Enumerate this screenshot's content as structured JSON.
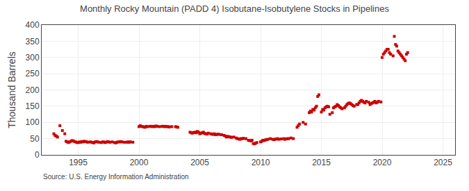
{
  "chart_data": {
    "type": "scatter",
    "title": "Monthly Rocky Mountain (PADD 4) Isobutane-Isobutylene Stocks in Pipelines",
    "y_label": "Thousand Barrels",
    "annotations": [
      "Source: U.S. Energy Information Administration"
    ],
    "color": "#cc0000",
    "marker": "square",
    "grid": true,
    "xlim": [
      1992,
      2026
    ],
    "ylim": [
      0,
      400
    ],
    "xticks": [
      1995,
      2000,
      2005,
      2010,
      2015,
      2020,
      2025
    ],
    "yticks": [
      0,
      50,
      100,
      150,
      200,
      250,
      300,
      350,
      400
    ],
    "x": [
      1993.0,
      1993.1,
      1993.2,
      1993.3,
      1993.5,
      1993.7,
      1993.9,
      1994.0,
      1994.1,
      1994.2,
      1994.3,
      1994.4,
      1994.5,
      1994.6,
      1994.7,
      1994.8,
      1994.9,
      1995.0,
      1995.1,
      1995.2,
      1995.3,
      1995.4,
      1995.5,
      1995.6,
      1995.7,
      1995.8,
      1996.0,
      1996.1,
      1996.2,
      1996.3,
      1996.4,
      1996.5,
      1996.6,
      1996.7,
      1996.9,
      1997.0,
      1997.1,
      1997.2,
      1997.3,
      1997.4,
      1997.5,
      1997.6,
      1997.8,
      1998.0,
      1998.1,
      1998.2,
      1998.3,
      1998.4,
      1998.5,
      1998.6,
      1998.8,
      1999.0,
      1999.1,
      1999.2,
      1999.3,
      1999.5,
      2000.0,
      2000.1,
      2000.2,
      2000.3,
      2000.4,
      2000.5,
      2000.6,
      2000.7,
      2000.9,
      2001.0,
      2001.1,
      2001.2,
      2001.3,
      2001.4,
      2001.5,
      2001.7,
      2001.9,
      2002.0,
      2002.1,
      2002.2,
      2002.3,
      2002.4,
      2002.5,
      2002.7,
      2003.0,
      2003.1,
      2003.2,
      2004.2,
      2004.3,
      2004.4,
      2004.5,
      2004.6,
      2004.7,
      2004.8,
      2004.9,
      2005.0,
      2005.1,
      2005.2,
      2005.3,
      2005.4,
      2005.5,
      2005.6,
      2005.7,
      2005.9,
      2006.0,
      2006.1,
      2006.2,
      2006.3,
      2006.4,
      2006.5,
      2006.6,
      2006.8,
      2007.0,
      2007.1,
      2007.2,
      2007.3,
      2007.4,
      2007.5,
      2007.6,
      2007.8,
      2008.0,
      2008.1,
      2008.2,
      2008.3,
      2008.4,
      2008.5,
      2008.6,
      2008.8,
      2009.0,
      2009.1,
      2009.2,
      2009.3,
      2009.4,
      2009.5,
      2009.6,
      2009.7,
      2010.0,
      2010.1,
      2010.2,
      2010.3,
      2010.4,
      2010.5,
      2010.6,
      2010.8,
      2011.0,
      2011.1,
      2011.2,
      2011.3,
      2011.4,
      2011.5,
      2011.7,
      2011.9,
      2012.0,
      2012.1,
      2012.2,
      2012.3,
      2012.5,
      2012.7,
      2013.0,
      2013.1,
      2013.2,
      2013.5,
      2013.7,
      2014.0,
      2014.1,
      2014.2,
      2014.3,
      2014.4,
      2014.5,
      2014.6,
      2014.7,
      2014.8,
      2015.0,
      2015.1,
      2015.2,
      2015.3,
      2015.4,
      2015.5,
      2015.6,
      2015.7,
      2015.9,
      2016.0,
      2016.1,
      2016.2,
      2016.3,
      2016.4,
      2016.5,
      2016.6,
      2016.7,
      2016.9,
      2017.0,
      2017.1,
      2017.2,
      2017.3,
      2017.4,
      2017.5,
      2017.6,
      2017.7,
      2017.9,
      2018.0,
      2018.1,
      2018.2,
      2018.3,
      2018.4,
      2018.5,
      2018.6,
      2018.7,
      2018.9,
      2019.0,
      2019.1,
      2019.2,
      2019.3,
      2019.4,
      2019.5,
      2019.6,
      2019.7,
      2019.9,
      2020.0,
      2020.1,
      2020.2,
      2020.3,
      2020.4,
      2020.5,
      2020.6,
      2020.7,
      2020.9,
      2021.0,
      2021.1,
      2021.2,
      2021.3,
      2021.4,
      2021.5,
      2021.6,
      2021.7,
      2021.8,
      2021.9,
      2022.0,
      2022.1
    ],
    "values": [
      65,
      60,
      58,
      55,
      90,
      75,
      65,
      42,
      40,
      38,
      40,
      42,
      44,
      43,
      41,
      40,
      38,
      38,
      40,
      39,
      41,
      40,
      42,
      41,
      40,
      39,
      40,
      39,
      38,
      37,
      40,
      41,
      40,
      39,
      38,
      40,
      40,
      38,
      39,
      41,
      40,
      39,
      40,
      38,
      37,
      39,
      40,
      40,
      41,
      40,
      39,
      39,
      40,
      39,
      40,
      39,
      87,
      90,
      88,
      87,
      86,
      85,
      88,
      87,
      88,
      88,
      87,
      88,
      87,
      89,
      88,
      87,
      88,
      88,
      87,
      88,
      87,
      87,
      86,
      87,
      87,
      86,
      85,
      70,
      68,
      67,
      69,
      70,
      68,
      72,
      70,
      65,
      67,
      68,
      70,
      66,
      65,
      64,
      67,
      65,
      64,
      63,
      65,
      62,
      63,
      64,
      63,
      62,
      60,
      58,
      55,
      57,
      56,
      55,
      54,
      55,
      52,
      50,
      49,
      48,
      50,
      50,
      51,
      50,
      45,
      44,
      43,
      45,
      35,
      34,
      36,
      38,
      40,
      42,
      45,
      44,
      46,
      47,
      48,
      50,
      48,
      47,
      48,
      49,
      50,
      48,
      49,
      50,
      48,
      49,
      50,
      50,
      52,
      50,
      85,
      90,
      95,
      100,
      95,
      130,
      135,
      132,
      140,
      138,
      145,
      150,
      180,
      185,
      132,
      140,
      138,
      145,
      148,
      150,
      148,
      125,
      130,
      145,
      148,
      150,
      155,
      152,
      148,
      145,
      142,
      145,
      150,
      155,
      158,
      160,
      158,
      155,
      152,
      150,
      155,
      155,
      160,
      165,
      168,
      165,
      162,
      160,
      165,
      162,
      155,
      158,
      160,
      162,
      165,
      160,
      162,
      165,
      163,
      300,
      310,
      315,
      320,
      325,
      325,
      315,
      310,
      305,
      365,
      340,
      335,
      320,
      315,
      310,
      305,
      300,
      295,
      290,
      310,
      315
    ]
  }
}
